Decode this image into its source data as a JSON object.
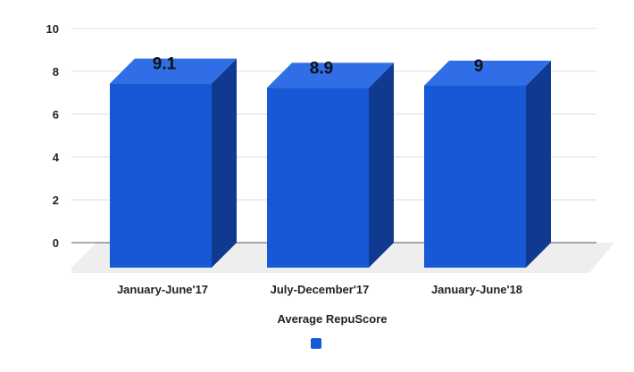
{
  "chart_data": {
    "type": "bar",
    "categories": [
      "January-June'17",
      "July-December'17",
      "January-June'18"
    ],
    "series": [
      {
        "name": "Average RepuScore",
        "values": [
          9.1,
          8.9,
          9
        ]
      }
    ],
    "data_labels": [
      "9.1",
      "8.9",
      "9"
    ],
    "yticks": [
      "0",
      "2",
      "4",
      "6",
      "8",
      "10"
    ],
    "ylim": [
      0,
      10
    ],
    "grid": true,
    "legend_position": "bottom",
    "three_d": true,
    "colors": {
      "bar_front": "#1658d6",
      "bar_top": "#2f6ee6",
      "bar_side": "#0f3a8f",
      "grid": "#dddddd",
      "floor": "#eeeeee",
      "axis": "#555555",
      "legend_swatch": "#1658d6"
    }
  }
}
